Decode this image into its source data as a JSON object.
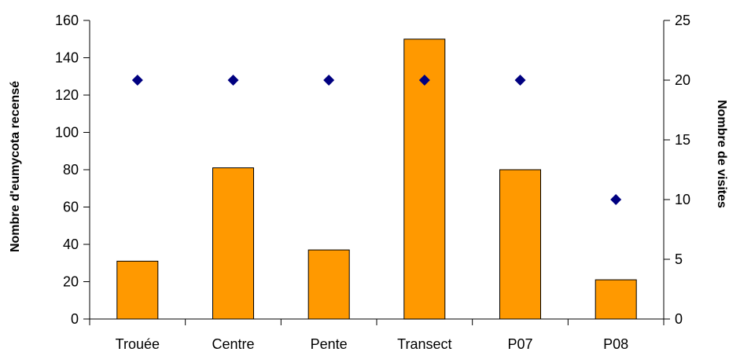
{
  "chart_data": {
    "type": "bar",
    "title": "",
    "categories": [
      "Trouée",
      "Centre",
      "Pente",
      "Transect",
      "P07",
      "P08"
    ],
    "series": [
      {
        "name": "Nombre d'eumycota recensé",
        "type": "bar",
        "axis": "left",
        "values": [
          31,
          81,
          37,
          150,
          80,
          21
        ],
        "color": "#FF9900"
      },
      {
        "name": "Nombre de visites",
        "type": "scatter",
        "axis": "right",
        "values": [
          20,
          20,
          20,
          20,
          20,
          10
        ],
        "color": "#000080",
        "marker": "diamond"
      }
    ],
    "ylabel": "Nombre d'eumycota recensé",
    "y2label": "Nombre de visites",
    "xlabel": "",
    "ylim": [
      0,
      160
    ],
    "y2lim": [
      0,
      25
    ],
    "yticks": [
      "0",
      "20",
      "40",
      "60",
      "80",
      "100",
      "120",
      "140",
      "160"
    ],
    "y2ticks": [
      "0",
      "5",
      "10",
      "15",
      "20",
      "25"
    ],
    "grid": false,
    "legend": "none"
  }
}
